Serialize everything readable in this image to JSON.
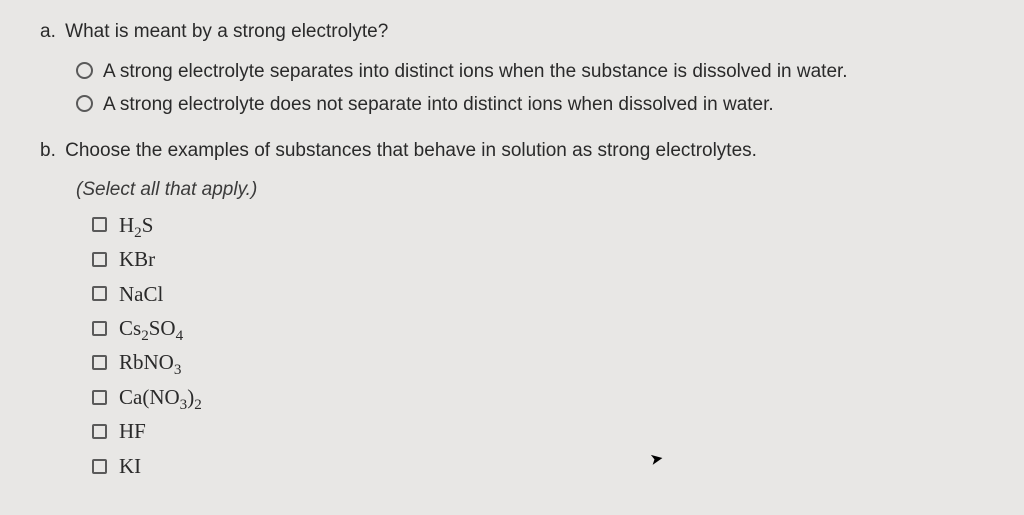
{
  "partA": {
    "letter": "a.",
    "stem": "What is meant by a strong electrolyte?",
    "options": [
      "A strong electrolyte separates into distinct ions when the substance is dissolved in water.",
      "A strong electrolyte does not separate into distinct ions when dissolved in water."
    ]
  },
  "partB": {
    "letter": "b.",
    "stem": "Choose the examples of substances that behave in solution as strong electrolytes.",
    "instruction": "(Select all that apply.)",
    "choices": [
      {
        "html": "H<sub>2</sub>S"
      },
      {
        "html": "KBr"
      },
      {
        "html": "NaCl"
      },
      {
        "html": "Cs<sub>2</sub>SO<sub>4</sub>"
      },
      {
        "html": "RbNO<sub>3</sub>"
      },
      {
        "html": "Ca(NO<sub>3</sub>)<sub>2</sub>"
      },
      {
        "html": "HF"
      },
      {
        "html": "KI"
      }
    ]
  },
  "colors": {
    "background": "#e8e7e5",
    "text": "#2a2a2a",
    "control_border": "#5a5a5a"
  }
}
